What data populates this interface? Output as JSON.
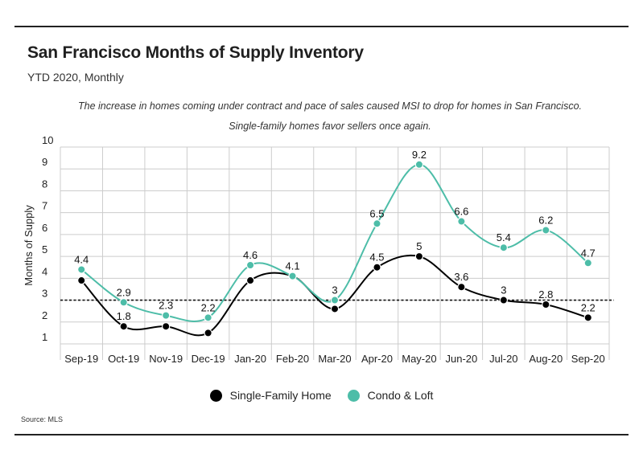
{
  "header": {
    "title": "San Francisco Months of Supply Inventory",
    "subtitle": "YTD 2020, Monthly",
    "note_line1": "The increase in homes coming under contract and pace of sales caused MSI to drop for homes in San Francisco.",
    "note_line2": "Single-family homes favor sellers once again."
  },
  "source": "Source:  MLS",
  "colors": {
    "single_family": "#000000",
    "condo": "#4dbda8",
    "grid": "#cccccc"
  },
  "chart_data": {
    "type": "line",
    "title": "San Francisco Months of Supply Inventory",
    "subtitle": "YTD 2020, Monthly",
    "xlabel": "",
    "ylabel": "Months of Supply",
    "categories": [
      "Sep-19",
      "Oct-19",
      "Nov-19",
      "Dec-19",
      "Jan-20",
      "Feb-20",
      "Mar-20",
      "Apr-20",
      "May-20",
      "Jun-20",
      "Jul-20",
      "Aug-20",
      "Sep-20"
    ],
    "ylim": [
      1,
      10
    ],
    "yticks": [
      1,
      2,
      3,
      4,
      5,
      6,
      7,
      8,
      9,
      10
    ],
    "reference_line": 3,
    "grid": true,
    "legend_position": "bottom",
    "series": [
      {
        "name": "Single-Family Home",
        "color": "#000000",
        "values": [
          3.9,
          1.8,
          1.8,
          1.5,
          3.9,
          4.1,
          2.6,
          4.5,
          5.0,
          3.6,
          3.0,
          2.8,
          2.2
        ],
        "labels": [
          "",
          "1.8",
          "",
          "",
          "",
          "",
          "",
          "4.5",
          "5",
          "3.6",
          "3",
          "2.8",
          "2.2"
        ]
      },
      {
        "name": "Condo & Loft",
        "color": "#4dbda8",
        "values": [
          4.4,
          2.9,
          2.3,
          2.2,
          4.6,
          4.1,
          3.0,
          6.5,
          9.2,
          6.6,
          5.4,
          6.2,
          4.7
        ],
        "labels": [
          "4.4",
          "2.9",
          "2.3",
          "2.2",
          "4.6",
          "4.1",
          "3",
          "6.5",
          "9.2",
          "6.6",
          "5.4",
          "6.2",
          "4.7"
        ]
      }
    ]
  }
}
